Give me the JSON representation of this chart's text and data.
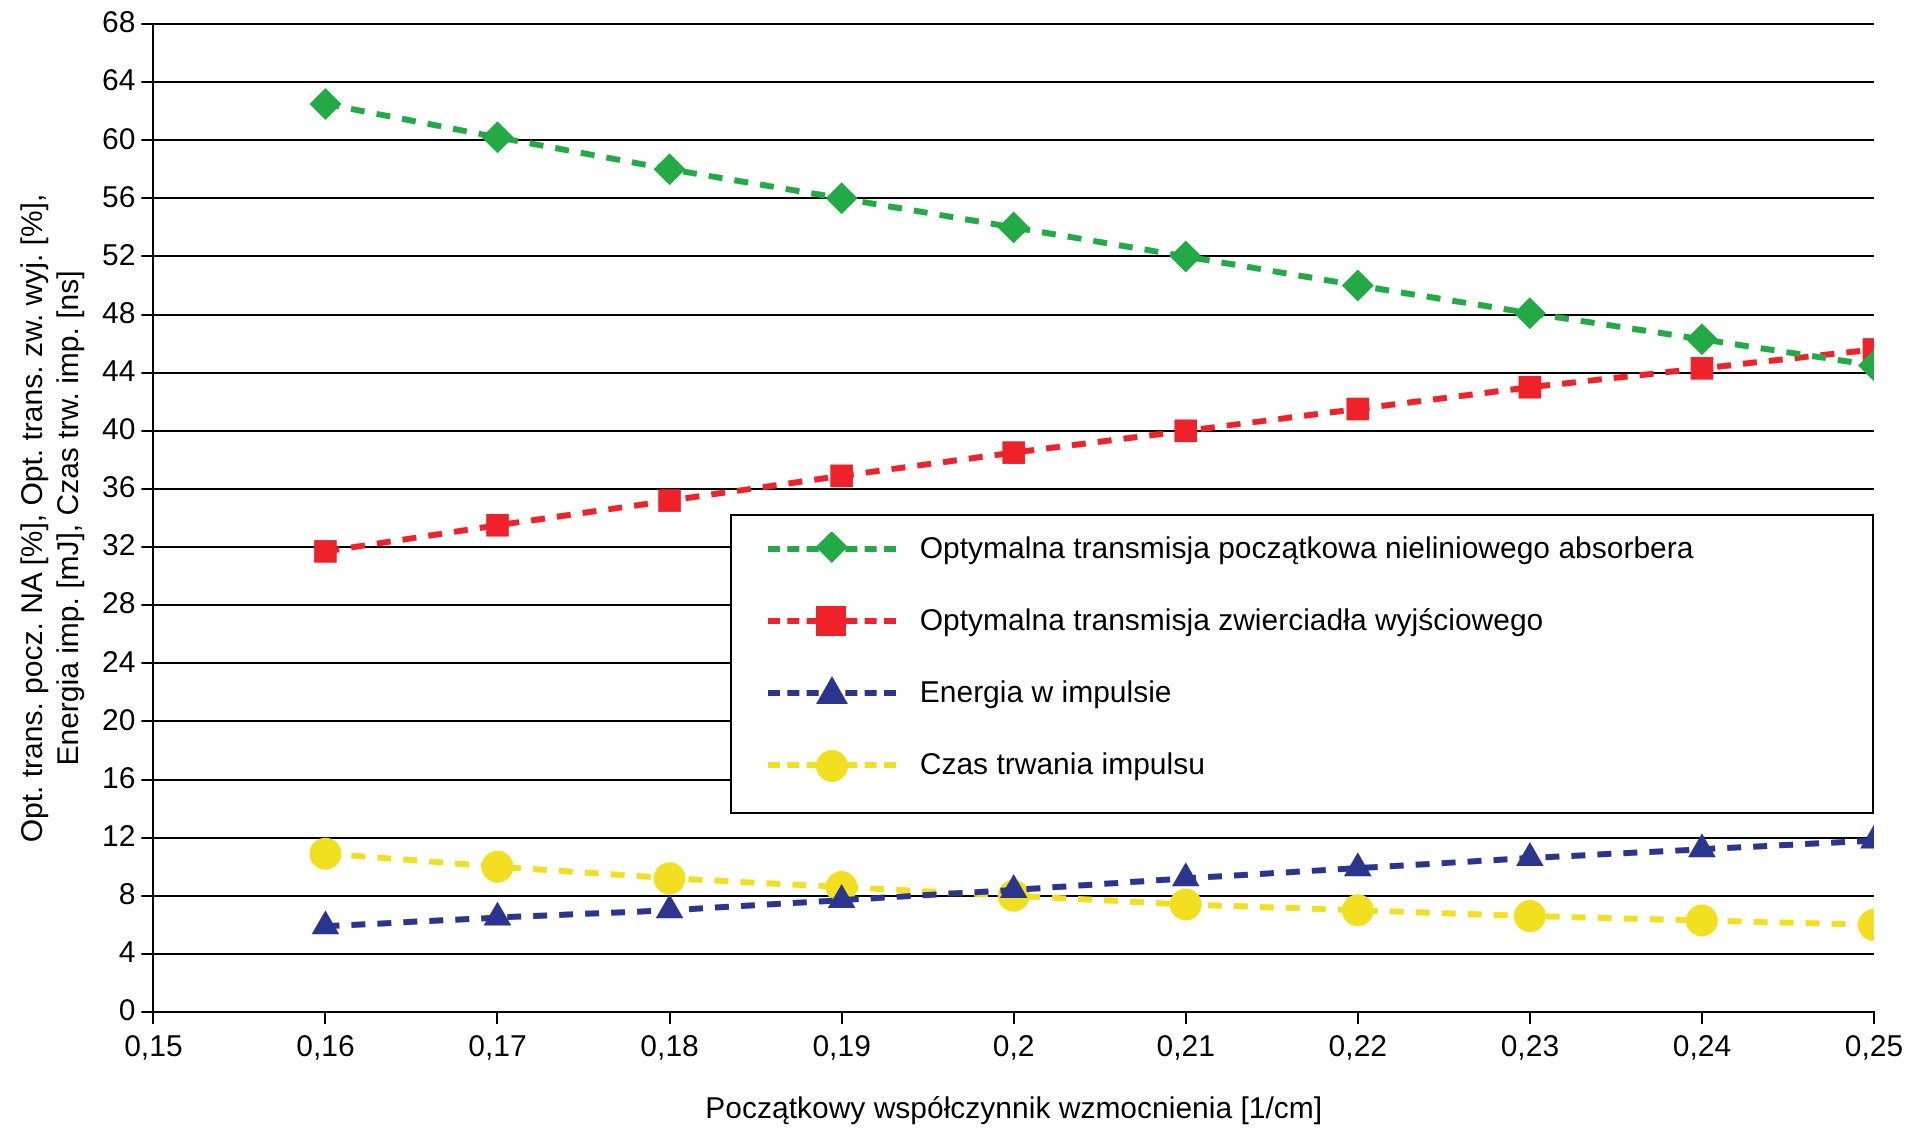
{
  "chart_data": {
    "type": "line",
    "xlabel": "Początkowy współczynnik wzmocnienia [1/cm]",
    "ylabel": "Opt. trans. pocz. NA [%], Opt. trans. zw. wyj. [%],\nEnergia imp. [mJ], Czas trw. imp. [ns]",
    "x": [
      0.16,
      0.17,
      0.18,
      0.19,
      0.2,
      0.21,
      0.22,
      0.23,
      0.24,
      0.25
    ],
    "series": [
      {
        "name": "Optymalna transmisja początkowa nieliniowego absorbera",
        "color": "#22aa44",
        "marker": "diamond",
        "values": [
          62.5,
          60.2,
          58,
          56,
          54,
          52,
          50,
          48.1,
          46.3,
          44.5
        ]
      },
      {
        "name": "Optymalna transmisja zwierciadła wyjściowego",
        "color": "#ee2228",
        "marker": "square",
        "values": [
          31.7,
          33.5,
          35.2,
          36.9,
          38.5,
          40,
          41.5,
          43,
          44.3,
          45.6
        ]
      },
      {
        "name": "Energia w impulsie",
        "color": "#2a3590",
        "marker": "triangle",
        "values": [
          5.9,
          6.5,
          7,
          7.7,
          8.4,
          9.2,
          9.9,
          10.6,
          11.2,
          11.8
        ]
      },
      {
        "name": "Czas trwania impulsu",
        "color": "#f2e020",
        "marker": "circle",
        "values": [
          10.9,
          10,
          9.2,
          8.6,
          8,
          7.4,
          7,
          6.6,
          6.3,
          6
        ]
      }
    ],
    "xlim": [
      0.15,
      0.25
    ],
    "xticks": [
      {
        "value": 0.15,
        "label": "0,15"
      },
      {
        "value": 0.16,
        "label": "0,16"
      },
      {
        "value": 0.17,
        "label": "0,17"
      },
      {
        "value": 0.18,
        "label": "0,18"
      },
      {
        "value": 0.19,
        "label": "0,19"
      },
      {
        "value": 0.2,
        "label": "0,2"
      },
      {
        "value": 0.21,
        "label": "0,21"
      },
      {
        "value": 0.22,
        "label": "0,22"
      },
      {
        "value": 0.23,
        "label": "0,23"
      },
      {
        "value": 0.24,
        "label": "0,24"
      },
      {
        "value": 0.25,
        "label": "0,25"
      }
    ],
    "ylim": [
      0,
      68
    ],
    "yticks": [
      0,
      4,
      8,
      12,
      16,
      20,
      24,
      28,
      32,
      36,
      40,
      44,
      48,
      52,
      56,
      60,
      64,
      68
    ],
    "grid": "y",
    "legend": "right",
    "line_style": "dashed"
  }
}
